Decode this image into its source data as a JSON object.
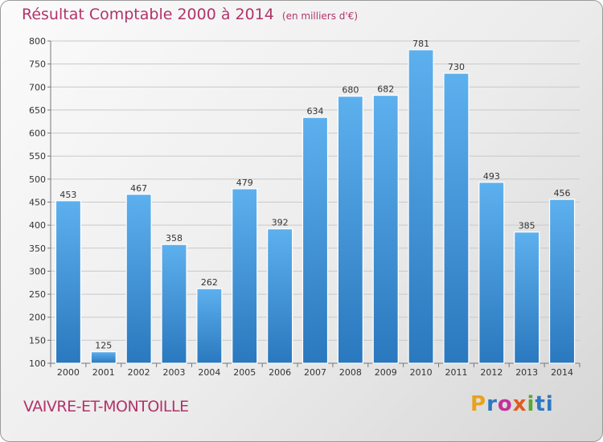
{
  "title": "Résultat Comptable 2000 à 2014",
  "subtitle": "(en milliers d'€)",
  "commune": "VAIVRE-ET-MONTOILLE",
  "logo": [
    "P",
    "r",
    "o",
    "x",
    "i",
    "ti"
  ],
  "chart_data": {
    "type": "bar",
    "title": "Résultat Comptable 2000 à 2014",
    "xlabel": "",
    "ylabel": "",
    "categories": [
      "2000",
      "2001",
      "2002",
      "2003",
      "2004",
      "2005",
      "2006",
      "2007",
      "2008",
      "2009",
      "2010",
      "2011",
      "2012",
      "2013",
      "2014"
    ],
    "values": [
      453,
      125,
      467,
      358,
      262,
      479,
      392,
      634,
      680,
      682,
      781,
      730,
      493,
      385,
      456
    ],
    "ylim": [
      100,
      800
    ],
    "yticks": [
      100,
      150,
      200,
      250,
      300,
      350,
      400,
      450,
      500,
      550,
      600,
      650,
      700,
      750,
      800
    ],
    "grid": true,
    "bar_color": "#3f93d6"
  }
}
